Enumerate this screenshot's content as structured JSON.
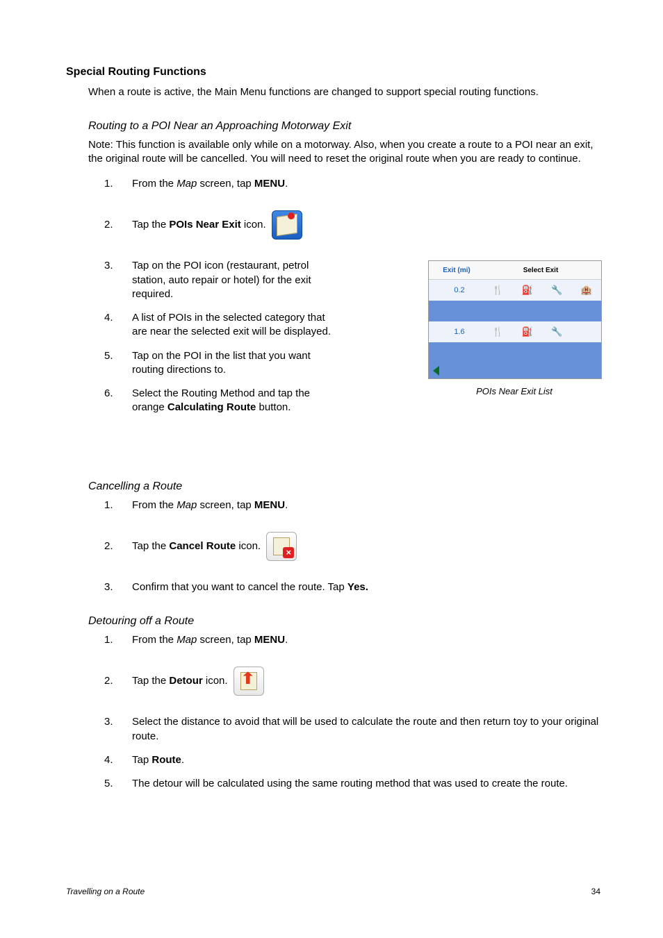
{
  "heading": "Special Routing Functions",
  "intro": "When a route is active, the Main Menu functions are changed to support special routing functions.",
  "sectionA": {
    "title": "Routing to a POI Near an Approaching Motorway Exit",
    "note": "Note: This function is available only while on a motorway.  Also, when you create a route to a POI near an exit, the original route will be cancelled.  You will need to reset the original route when you are ready to continue.",
    "steps": [
      {
        "n": "1.",
        "pre": "From the ",
        "em": "Map",
        "mid": " screen, tap ",
        "bold": "MENU",
        "post": "."
      },
      {
        "n": "2.",
        "pre": "Tap the ",
        "bold": "POIs Near Exit",
        "post": " icon.",
        "icon": "pois"
      },
      {
        "n": "3.",
        "text": "Tap on the POI icon (restaurant, petrol station, auto repair or hotel) for the exit required."
      },
      {
        "n": "4.",
        "text": "A list of POIs in the selected category that are near the selected exit will be displayed."
      },
      {
        "n": "5.",
        "text": "Tap on the POI in the list that you want routing directions to."
      },
      {
        "n": "6.",
        "pre": "Select the Routing Method and tap the orange ",
        "bold": "Calculating Route",
        "post": " button."
      }
    ]
  },
  "figure": {
    "header_left": "Exit   (mi)",
    "header_right": "Select Exit",
    "rows": [
      {
        "dist": "0.2",
        "icons": [
          "🍴",
          "⛽",
          "🔧",
          "🏨"
        ],
        "class": "row-light"
      },
      {
        "dist": "",
        "icons": [
          "",
          "",
          "",
          ""
        ],
        "class": "row-blue"
      },
      {
        "dist": "1.6",
        "icons": [
          "🍴",
          "⛽",
          "🔧",
          ""
        ],
        "class": "row-light"
      },
      {
        "dist": "",
        "icons": [
          "",
          "",
          "",
          ""
        ],
        "class": "row-blue"
      }
    ],
    "caption": "POIs Near Exit List"
  },
  "sectionB": {
    "title": "Cancelling a Route",
    "steps": [
      {
        "n": "1.",
        "pre": "From the ",
        "em": "Map",
        "mid": " screen, tap ",
        "bold": "MENU",
        "post": "."
      },
      {
        "n": "2.",
        "pre": "Tap the ",
        "bold": "Cancel Route",
        "post": " icon.",
        "icon": "cancel"
      },
      {
        "n": "3.",
        "pre": "Confirm that you want to cancel the route.  Tap ",
        "bold": "Yes.",
        "post": ""
      }
    ]
  },
  "sectionC": {
    "title": "Detouring off a Route",
    "steps": [
      {
        "n": "1.",
        "pre": "From the ",
        "em": "Map",
        "mid": " screen, tap ",
        "bold": "MENU",
        "post": "."
      },
      {
        "n": "2.",
        "pre": "Tap the ",
        "bold": "Detour",
        "post": " icon.",
        "icon": "detour"
      },
      {
        "n": "3.",
        "text": "Select the distance to avoid that will be used to calculate the route and then return toy to your original route."
      },
      {
        "n": "4.",
        "pre": "Tap ",
        "bold": "Route",
        "post": "."
      },
      {
        "n": "5.",
        "text": "The detour will be calculated using the same routing method that was used to create the route."
      }
    ]
  },
  "footer": {
    "section": "Travelling on a Route",
    "page": "34"
  }
}
